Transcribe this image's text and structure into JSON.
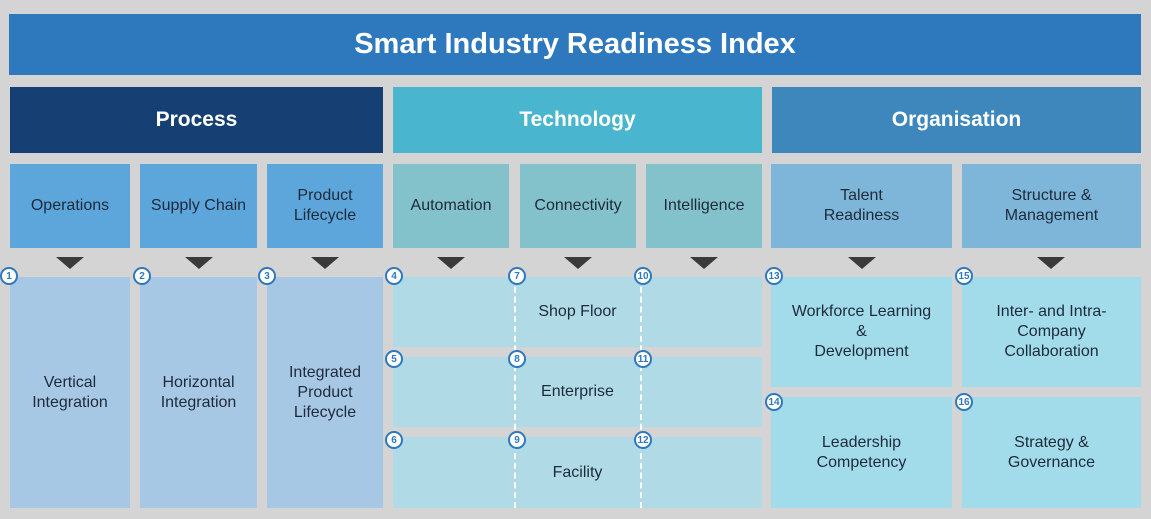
{
  "title": "Smart Industry Readiness Index",
  "pillars": {
    "process": "Process",
    "technology": "Technology",
    "organisation": "Organisation"
  },
  "dimensions": {
    "operations": "Operations",
    "supply_chain": "Supply Chain",
    "product_lifecycle": "Product\nLifecycle",
    "automation": "Automation",
    "connectivity": "Connectivity",
    "intelligence": "Intelligence",
    "talent_readiness": "Talent\nReadiness",
    "structure_management": "Structure &\nManagement"
  },
  "rows": {
    "shop_floor": "Shop Floor",
    "enterprise": "Enterprise",
    "facility": "Facility"
  },
  "areas": {
    "vertical_integration": "Vertical\nIntegration",
    "horizontal_integration": "Horizontal\nIntegration",
    "integrated_product_lifecycle": "Integrated\nProduct\nLifecycle",
    "workforce_learning": "Workforce Learning\n&\nDevelopment",
    "leadership_competency": "Leadership\nCompetency",
    "inter_intra_collaboration": "Inter- and Intra-\nCompany\nCollaboration",
    "strategy_governance": "Strategy &\nGovernance"
  },
  "numbers": [
    "1",
    "2",
    "3",
    "4",
    "5",
    "6",
    "7",
    "8",
    "9",
    "10",
    "11",
    "12",
    "13",
    "14",
    "15",
    "16"
  ]
}
